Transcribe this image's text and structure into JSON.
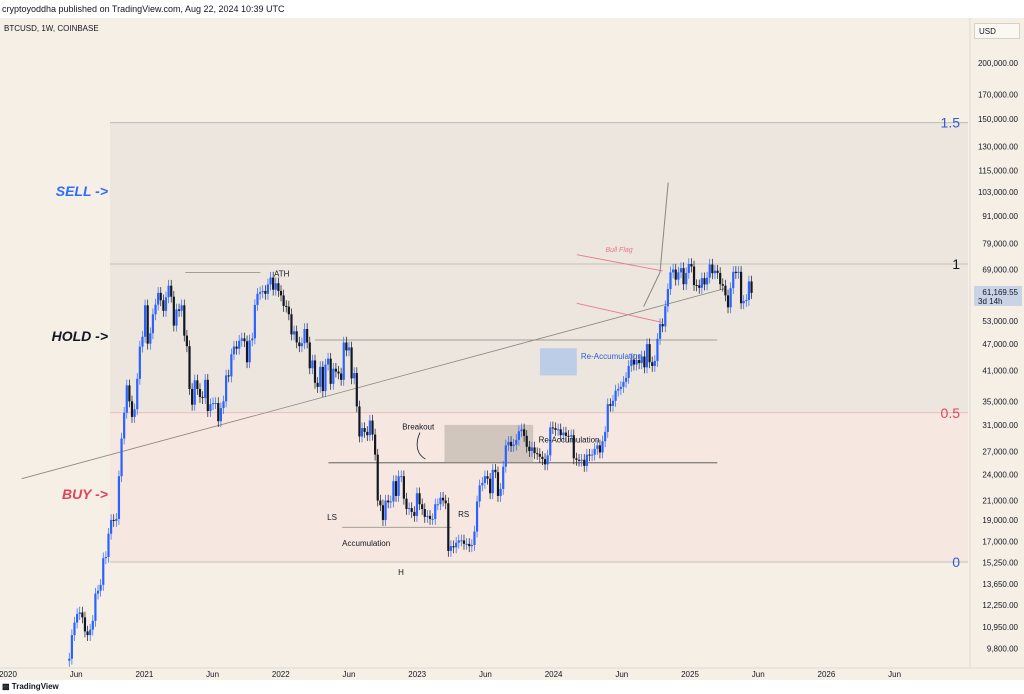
{
  "header": {
    "publisher_line": "cryptoyoddha published on TradingView.com, Aug 22, 2024 10:39 UTC"
  },
  "chart_header": {
    "symbol": "BTCUSD, 1W, COINBASE",
    "currency": "USD"
  },
  "footer": {
    "brand": "TradingView"
  },
  "colors": {
    "background": "#f5efe6",
    "bull": "#2962ff",
    "bear": "#131722",
    "sell": "#2f6bff",
    "buy": "#e0445a",
    "fib_blue": "#2f5bd3",
    "fib_red": "#e0445a",
    "flag": "#e87a8a",
    "box": "#9c9c9c",
    "reaccum_blue": "#8cb4f2"
  },
  "chart_data": {
    "type": "candlestick",
    "symbol": "BTCUSD",
    "interval": "1W",
    "exchange": "COINBASE",
    "price_axis": {
      "scale": "log",
      "labels": [
        "200,000.00",
        "170,000.00",
        "150,000.00",
        "130,000.00",
        "115,000.00",
        "103,000.00",
        "91,000.00",
        "79,000.00",
        "69,000.00",
        "61,169.55",
        "53,000.00",
        "47,000.00",
        "41,000.00",
        "35,000.00",
        "31,000.00",
        "27,000.00",
        "24,000.00",
        "21,000.00",
        "19,000.00",
        "17,000.00",
        "15,250.00",
        "13,650.00",
        "12,250.00",
        "10,950.00",
        "9,800.00"
      ],
      "ticks": [
        200000,
        170000,
        150000,
        130000,
        115000,
        103000,
        91000,
        79000,
        69000,
        53000,
        47000,
        41000,
        35000,
        31000,
        27000,
        24000,
        21000,
        19000,
        17000,
        15250,
        13650,
        12250,
        10950,
        9800
      ]
    },
    "time_axis": {
      "labels": [
        "2020",
        "Jun",
        "2021",
        "Jun",
        "2022",
        "Jun",
        "2023",
        "Jun",
        "2024",
        "Jun",
        "2025",
        "Jun",
        "2026",
        "Jun"
      ],
      "range": [
        2020.0,
        2026.95
      ]
    },
    "current_price": {
      "label": "61,169.55",
      "countdown": "3d 14h",
      "value": 61169.55
    },
    "fib_levels": [
      {
        "label": "1.5",
        "price": 147000
      },
      {
        "label": "1",
        "price": 71000
      },
      {
        "label": "0.5",
        "price": 33000
      },
      {
        "label": "0",
        "price": 15300
      }
    ],
    "zone_labels": {
      "sell": "SELL ->",
      "hold": "HOLD ->",
      "buy": "BUY ->"
    },
    "annotations": {
      "ath": "ATH",
      "bull_flag": "Bull Flag",
      "reaccum_upper": "Re-Accumulation",
      "breakout": "Breakout",
      "reaccum_lower": "Re-Accumulation",
      "ls": "LS",
      "rs": "RS",
      "accumulation": "Accumulation",
      "h": "H"
    },
    "weekly_closes": [
      9200,
      9300,
      10500,
      11200,
      11700,
      11800,
      11500,
      10700,
      10500,
      10800,
      11300,
      13000,
      13200,
      13600,
      15600,
      15700,
      17700,
      19000,
      18900,
      19100,
      23800,
      28900,
      33000,
      38000,
      35000,
      32300,
      33600,
      39300,
      46400,
      48800,
      57400,
      47100,
      49700,
      54800,
      57600,
      61200,
      58900,
      55800,
      59800,
      63500,
      60000,
      51700,
      56200,
      55800,
      57400,
      49100,
      46500,
      37300,
      34400,
      39000,
      37300,
      35800,
      35600,
      39100,
      33300,
      34500,
      34700,
      34700,
      31600,
      33800,
      35000,
      40000,
      39800,
      44600,
      46400,
      45900,
      47800,
      48400,
      47700,
      42800,
      47900,
      48400,
      57500,
      60900,
      61400,
      61800,
      60900,
      63900,
      66200,
      62200,
      64300,
      61800,
      60400,
      57200,
      57000,
      54800,
      49400,
      50200,
      47400,
      46500,
      47200,
      50800,
      47400,
      41500,
      43200,
      38500,
      37700,
      41800,
      36900,
      42300,
      43600,
      38300,
      41400,
      40800,
      40400,
      39100,
      47400,
      45500,
      46200,
      39400,
      40500,
      34100,
      29200,
      30500,
      29900,
      29400,
      31700,
      29500,
      26600,
      21000,
      20500,
      19000,
      21000,
      20800,
      20900,
      23200,
      21500,
      23800,
      23800,
      21200,
      20100,
      20200,
      19800,
      19400,
      21800,
      20600,
      20100,
      19300,
      19400,
      19100,
      19100,
      20600,
      20600,
      21300,
      21000,
      20700,
      16200,
      16600,
      16500,
      16900,
      17100,
      17100,
      16800,
      16800,
      16600,
      16700,
      17900,
      20900,
      22700,
      23000,
      23800,
      23500,
      21800,
      24600,
      24300,
      21500,
      22300,
      25000,
      27900,
      28400,
      27800,
      28000,
      28700,
      30000,
      30300,
      29300,
      27700,
      27100,
      27600,
      26800,
      26700,
      26300,
      26000,
      25300,
      26500,
      30600,
      30500,
      30200,
      30300,
      29400,
      29800,
      29300,
      29200,
      29400,
      26100,
      25900,
      25800,
      25900,
      25100,
      26600,
      26500,
      26600,
      27400,
      27900,
      26900,
      28500,
      29900,
      34500,
      34200,
      35100,
      37000,
      37300,
      37700,
      38700,
      39500,
      42000,
      43400,
      42300,
      43300,
      42600,
      44100,
      41700,
      47000,
      42800,
      42000,
      43100,
      48300,
      52100,
      51500,
      57100,
      62400,
      68000,
      69000,
      65500,
      68000,
      69500,
      64000,
      67800,
      71000,
      70100,
      63700,
      63600,
      62800,
      66000,
      63900,
      66200,
      70800,
      67700,
      68600,
      67800,
      64000,
      63500,
      60400,
      56800,
      62700,
      68200,
      67800,
      68200,
      58000,
      58700,
      59000,
      64900,
      61169.55
    ]
  }
}
